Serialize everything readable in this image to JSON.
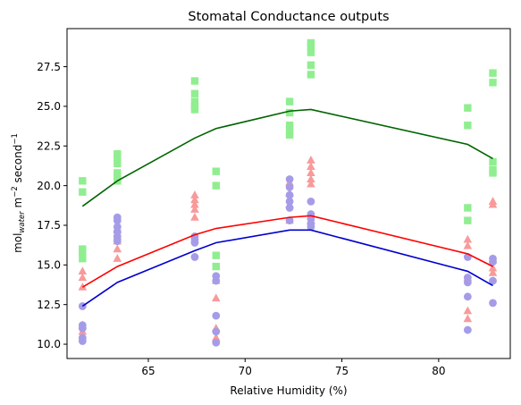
{
  "chart_data": {
    "type": "scatter",
    "title": "Stomatal Conductance outputs",
    "xlabel": "Relative Humidity (%)",
    "ylabel": {
      "main": "mol",
      "sub": "water",
      "units1": " m",
      "sup1": "−2",
      "units2": " second",
      "sup2": "−1"
    },
    "xlim": [
      60.8,
      83.7
    ],
    "ylim": [
      9.1,
      29.9
    ],
    "xticks": [
      65,
      70,
      75,
      80
    ],
    "yticks": [
      10.0,
      12.5,
      15.0,
      17.5,
      20.0,
      22.5,
      25.0,
      27.5
    ],
    "xtick_labels": [
      "65",
      "70",
      "75",
      "80"
    ],
    "ytick_labels": [
      "10.0",
      "12.5",
      "15.0",
      "17.5",
      "20.0",
      "22.5",
      "25.0",
      "27.5"
    ],
    "grid": false,
    "colors": {
      "green_points": "#90ee90",
      "red_points": "#f89a9a",
      "blue_points": "#a59ce8",
      "green_line": "#006400",
      "red_line": "#ff0000",
      "blue_line": "#0000cd"
    },
    "scatter_series": [
      {
        "marker": "square",
        "color_key": "green_points",
        "points": [
          [
            61.6,
            20.3
          ],
          [
            61.6,
            19.6
          ],
          [
            61.6,
            16.0
          ],
          [
            61.6,
            15.8
          ],
          [
            61.6,
            15.4
          ],
          [
            63.4,
            22.0
          ],
          [
            63.4,
            21.8
          ],
          [
            63.4,
            21.4
          ],
          [
            63.4,
            20.8
          ],
          [
            63.4,
            20.5
          ],
          [
            63.4,
            20.3
          ],
          [
            67.4,
            26.6
          ],
          [
            67.4,
            25.8
          ],
          [
            67.4,
            25.3
          ],
          [
            67.4,
            25.0
          ],
          [
            67.4,
            24.8
          ],
          [
            68.5,
            20.9
          ],
          [
            68.5,
            20.0
          ],
          [
            68.5,
            15.6
          ],
          [
            68.5,
            14.9
          ],
          [
            72.3,
            25.3
          ],
          [
            72.3,
            24.6
          ],
          [
            72.3,
            23.8
          ],
          [
            72.3,
            23.5
          ],
          [
            72.3,
            23.2
          ],
          [
            73.4,
            29.0
          ],
          [
            73.4,
            28.8
          ],
          [
            73.4,
            28.4
          ],
          [
            73.4,
            27.6
          ],
          [
            73.4,
            27.0
          ],
          [
            81.5,
            24.9
          ],
          [
            81.5,
            23.8
          ],
          [
            81.5,
            18.6
          ],
          [
            81.5,
            17.8
          ],
          [
            82.8,
            27.1
          ],
          [
            82.8,
            26.5
          ],
          [
            82.8,
            21.5
          ],
          [
            82.8,
            21.0
          ],
          [
            82.8,
            20.8
          ]
        ]
      },
      {
        "marker": "triangle",
        "color_key": "red_points",
        "points": [
          [
            61.6,
            14.6
          ],
          [
            61.6,
            14.2
          ],
          [
            61.6,
            13.6
          ],
          [
            61.6,
            11.2
          ],
          [
            61.6,
            10.8
          ],
          [
            63.4,
            17.2
          ],
          [
            63.4,
            16.8
          ],
          [
            63.4,
            16.5
          ],
          [
            63.4,
            16.0
          ],
          [
            63.4,
            15.4
          ],
          [
            67.4,
            19.4
          ],
          [
            67.4,
            19.1
          ],
          [
            67.4,
            18.8
          ],
          [
            67.4,
            18.5
          ],
          [
            67.4,
            18.0
          ],
          [
            67.4,
            16.6
          ],
          [
            68.5,
            14.0
          ],
          [
            68.5,
            12.9
          ],
          [
            68.5,
            11.0
          ],
          [
            68.5,
            10.4
          ],
          [
            72.3,
            20.2
          ],
          [
            72.3,
            19.5
          ],
          [
            72.3,
            18.8
          ],
          [
            72.3,
            17.8
          ],
          [
            73.4,
            21.6
          ],
          [
            73.4,
            21.2
          ],
          [
            73.4,
            20.8
          ],
          [
            73.4,
            20.4
          ],
          [
            73.4,
            20.1
          ],
          [
            73.4,
            17.8
          ],
          [
            81.5,
            16.6
          ],
          [
            81.5,
            16.2
          ],
          [
            81.5,
            14.2
          ],
          [
            81.5,
            12.1
          ],
          [
            81.5,
            11.6
          ],
          [
            82.8,
            19.0
          ],
          [
            82.8,
            18.8
          ],
          [
            82.8,
            15.3
          ],
          [
            82.8,
            14.8
          ],
          [
            82.8,
            14.5
          ]
        ]
      },
      {
        "marker": "circle",
        "color_key": "blue_points",
        "points": [
          [
            61.6,
            12.4
          ],
          [
            61.6,
            11.2
          ],
          [
            61.6,
            11.0
          ],
          [
            61.6,
            10.4
          ],
          [
            61.6,
            10.2
          ],
          [
            63.4,
            18.0
          ],
          [
            63.4,
            17.8
          ],
          [
            63.4,
            17.4
          ],
          [
            63.4,
            17.1
          ],
          [
            63.4,
            16.8
          ],
          [
            63.4,
            16.5
          ],
          [
            67.4,
            16.8
          ],
          [
            67.4,
            16.6
          ],
          [
            67.4,
            16.4
          ],
          [
            67.4,
            15.5
          ],
          [
            68.5,
            14.3
          ],
          [
            68.5,
            14.0
          ],
          [
            68.5,
            11.8
          ],
          [
            68.5,
            10.8
          ],
          [
            68.5,
            10.1
          ],
          [
            72.3,
            20.4
          ],
          [
            72.3,
            19.9
          ],
          [
            72.3,
            19.4
          ],
          [
            72.3,
            19.0
          ],
          [
            72.3,
            18.6
          ],
          [
            72.3,
            17.8
          ],
          [
            73.4,
            19.0
          ],
          [
            73.4,
            18.2
          ],
          [
            73.4,
            17.9
          ],
          [
            73.4,
            17.6
          ],
          [
            73.4,
            17.4
          ],
          [
            81.5,
            15.5
          ],
          [
            81.5,
            14.2
          ],
          [
            81.5,
            13.9
          ],
          [
            81.5,
            13.0
          ],
          [
            81.5,
            10.9
          ],
          [
            82.8,
            15.4
          ],
          [
            82.8,
            15.2
          ],
          [
            82.8,
            14.0
          ],
          [
            82.8,
            12.6
          ]
        ]
      }
    ],
    "line_series": [
      {
        "color_key": "green_line",
        "x": [
          61.6,
          63.4,
          67.4,
          68.5,
          72.3,
          73.4,
          81.5,
          82.8
        ],
        "y": [
          18.7,
          20.3,
          23.0,
          23.6,
          24.7,
          24.8,
          22.6,
          21.7
        ]
      },
      {
        "color_key": "red_line",
        "x": [
          61.6,
          63.4,
          67.4,
          68.5,
          72.3,
          73.4,
          81.5,
          82.8
        ],
        "y": [
          13.6,
          14.9,
          16.9,
          17.3,
          18.0,
          18.1,
          15.7,
          14.9
        ]
      },
      {
        "color_key": "blue_line",
        "x": [
          61.6,
          63.4,
          67.4,
          68.5,
          72.3,
          73.4,
          81.5,
          82.8
        ],
        "y": [
          12.4,
          13.9,
          15.9,
          16.4,
          17.2,
          17.2,
          14.6,
          13.7
        ]
      }
    ]
  }
}
